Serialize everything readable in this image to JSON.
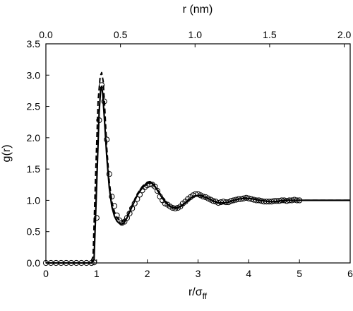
{
  "chart_data": {
    "type": "line",
    "title": "",
    "xlabel": "r/σ",
    "xlabel_sub": "ff",
    "ylabel": "g(r)",
    "x2label": "r (nm)",
    "xlim": [
      0,
      6
    ],
    "ylim": [
      0,
      3.5
    ],
    "x2lim": [
      0,
      2.04
    ],
    "grid": false,
    "xticks": [
      "0",
      "1",
      "2",
      "3",
      "4",
      "5",
      "6"
    ],
    "yticks": [
      "0.0",
      "0.5",
      "1.0",
      "1.5",
      "2.0",
      "2.5",
      "3.0",
      "3.5"
    ],
    "x2ticks": [
      "0.0",
      "0.5",
      "1.0",
      "1.5",
      "2.0"
    ],
    "colors": {
      "ink": "#000000",
      "background": "#ffffff"
    },
    "series": [
      {
        "style": "solid",
        "x": [
          0,
          0.9,
          0.95,
          1.0,
          1.05,
          1.08,
          1.1,
          1.12,
          1.15,
          1.2,
          1.25,
          1.3,
          1.35,
          1.4,
          1.45,
          1.5,
          1.55,
          1.6,
          1.7,
          1.8,
          1.9,
          2.0,
          2.05,
          2.1,
          2.15,
          2.2,
          2.3,
          2.4,
          2.5,
          2.6,
          2.7,
          2.8,
          2.9,
          3.0,
          3.1,
          3.2,
          3.3,
          3.4,
          3.5,
          3.6,
          3.7,
          3.8,
          3.9,
          4.0,
          4.1,
          4.2,
          4.3,
          4.4,
          4.5,
          4.6,
          4.7,
          4.8,
          4.9,
          5.0,
          5.2,
          5.4,
          5.6,
          5.8,
          6.0
        ],
        "y": [
          0.0,
          0.0,
          0.05,
          1.2,
          2.4,
          2.78,
          2.82,
          2.7,
          2.35,
          1.7,
          1.2,
          0.9,
          0.75,
          0.67,
          0.63,
          0.62,
          0.65,
          0.72,
          0.9,
          1.08,
          1.2,
          1.27,
          1.28,
          1.27,
          1.22,
          1.16,
          1.03,
          0.93,
          0.88,
          0.88,
          0.93,
          1.0,
          1.06,
          1.08,
          1.06,
          1.03,
          0.99,
          0.96,
          0.96,
          0.97,
          1.0,
          1.02,
          1.03,
          1.03,
          1.02,
          1.0,
          0.99,
          0.98,
          0.98,
          0.99,
          1.0,
          1.0,
          1.0,
          1.0,
          1.0,
          1.0,
          1.0,
          1.0,
          1.0
        ]
      },
      {
        "style": "dashed",
        "x": [
          0,
          0.88,
          0.93,
          0.98,
          1.03,
          1.07,
          1.1,
          1.13,
          1.16,
          1.2,
          1.25,
          1.3,
          1.35,
          1.4,
          1.45,
          1.5,
          1.55,
          1.6,
          1.7,
          1.8,
          1.9,
          2.0,
          2.05,
          2.1,
          2.2,
          2.3,
          2.4,
          2.5,
          2.6,
          2.7,
          2.8,
          2.9,
          3.0,
          3.1,
          3.2,
          3.3,
          3.4,
          3.5,
          3.6,
          3.7,
          3.8,
          3.9,
          4.0,
          4.1,
          4.2,
          4.4,
          4.6,
          4.8,
          5.0,
          5.5,
          6.0
        ],
        "y": [
          0.0,
          0.0,
          0.1,
          1.4,
          2.6,
          2.98,
          3.04,
          2.9,
          2.5,
          1.85,
          1.3,
          0.98,
          0.82,
          0.73,
          0.68,
          0.66,
          0.68,
          0.74,
          0.92,
          1.1,
          1.22,
          1.29,
          1.3,
          1.28,
          1.17,
          1.05,
          0.94,
          0.88,
          0.87,
          0.92,
          0.99,
          1.06,
          1.09,
          1.07,
          1.03,
          0.99,
          0.96,
          0.95,
          0.97,
          1.0,
          1.02,
          1.04,
          1.03,
          1.02,
          1.0,
          0.98,
          0.98,
          1.0,
          1.0,
          1.0,
          1.0
        ]
      },
      {
        "style": "markers",
        "marker": "circle-open",
        "x": [
          0.0,
          0.1,
          0.2,
          0.3,
          0.4,
          0.5,
          0.6,
          0.7,
          0.8,
          0.9,
          0.95,
          1.0,
          1.05,
          1.1,
          1.15,
          1.2,
          1.25,
          1.3,
          1.35,
          1.4,
          1.45,
          1.5,
          1.55,
          1.6,
          1.65,
          1.7,
          1.75,
          1.8,
          1.85,
          1.9,
          1.95,
          2.0,
          2.05,
          2.1,
          2.15,
          2.2,
          2.25,
          2.3,
          2.35,
          2.4,
          2.45,
          2.5,
          2.55,
          2.6,
          2.65,
          2.7,
          2.75,
          2.8,
          2.85,
          2.9,
          2.95,
          3.0,
          3.05,
          3.1,
          3.15,
          3.2,
          3.25,
          3.3,
          3.35,
          3.4,
          3.45,
          3.5,
          3.55,
          3.6,
          3.65,
          3.7,
          3.75,
          3.8,
          3.85,
          3.9,
          3.95,
          4.0,
          4.05,
          4.1,
          4.15,
          4.2,
          4.25,
          4.3,
          4.35,
          4.4,
          4.45,
          4.5,
          4.55,
          4.6,
          4.65,
          4.7,
          4.75,
          4.8,
          4.85,
          4.9,
          4.95,
          5.0
        ],
        "y": [
          0.0,
          0.0,
          0.0,
          0.0,
          0.0,
          0.0,
          0.0,
          0.0,
          0.0,
          0.0,
          0.01,
          0.72,
          2.28,
          2.84,
          2.58,
          1.97,
          1.42,
          1.06,
          0.91,
          0.76,
          0.68,
          0.64,
          0.66,
          0.72,
          0.79,
          0.87,
          0.95,
          1.02,
          1.09,
          1.16,
          1.21,
          1.24,
          1.26,
          1.25,
          1.22,
          1.15,
          1.06,
          1.0,
          0.95,
          0.93,
          0.9,
          0.88,
          0.87,
          0.88,
          0.9,
          0.95,
          0.98,
          1.02,
          1.05,
          1.08,
          1.1,
          1.1,
          1.08,
          1.06,
          1.05,
          1.03,
          1.01,
          0.99,
          0.98,
          0.96,
          0.97,
          0.98,
          0.97,
          0.97,
          0.99,
          1.0,
          1.01,
          1.02,
          1.02,
          1.03,
          1.04,
          1.03,
          1.02,
          1.01,
          1.0,
          1.0,
          0.99,
          0.98,
          0.98,
          0.98,
          0.98,
          0.99,
          0.99,
          0.99,
          1.0,
          1.0,
          0.99,
          1.0,
          1.0,
          1.01,
          1.0,
          1.0
        ]
      }
    ]
  }
}
